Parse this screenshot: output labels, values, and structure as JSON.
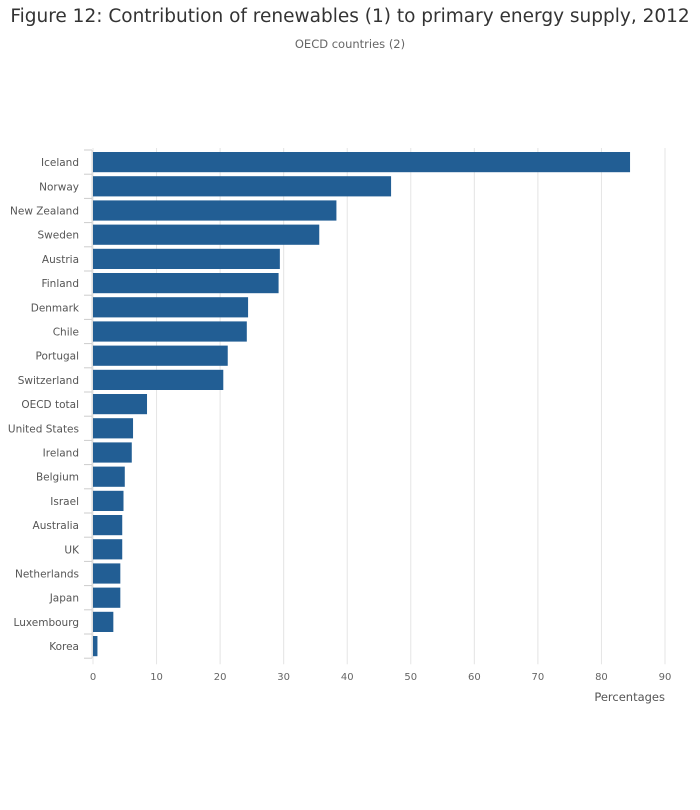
{
  "chart_data": {
    "type": "bar",
    "orientation": "horizontal",
    "title": "Figure 12: Contribution of renewables (1) to primary energy supply, 2012",
    "subtitle": "OECD countries (2)",
    "xlabel": "Percentages",
    "xlim": [
      0,
      90
    ],
    "xticks": [
      0,
      10,
      20,
      30,
      40,
      50,
      60,
      70,
      80,
      90
    ],
    "grid": true,
    "bar_color": "#225e94",
    "categories": [
      "Iceland",
      "Norway",
      "New Zealand",
      "Sweden",
      "Austria",
      "Finland",
      "Denmark",
      "Chile",
      "Portugal",
      "Switzerland",
      "OECD total",
      "United States",
      "Ireland",
      "Belgium",
      "Israel",
      "Australia",
      "UK",
      "Netherlands",
      "Japan",
      "Luxembourg",
      "Korea"
    ],
    "values": [
      84.5,
      46.9,
      38.3,
      35.6,
      29.4,
      29.2,
      24.4,
      24.2,
      21.2,
      20.5,
      8.5,
      6.3,
      6.1,
      5.0,
      4.8,
      4.6,
      4.6,
      4.3,
      4.3,
      3.2,
      0.7
    ]
  }
}
